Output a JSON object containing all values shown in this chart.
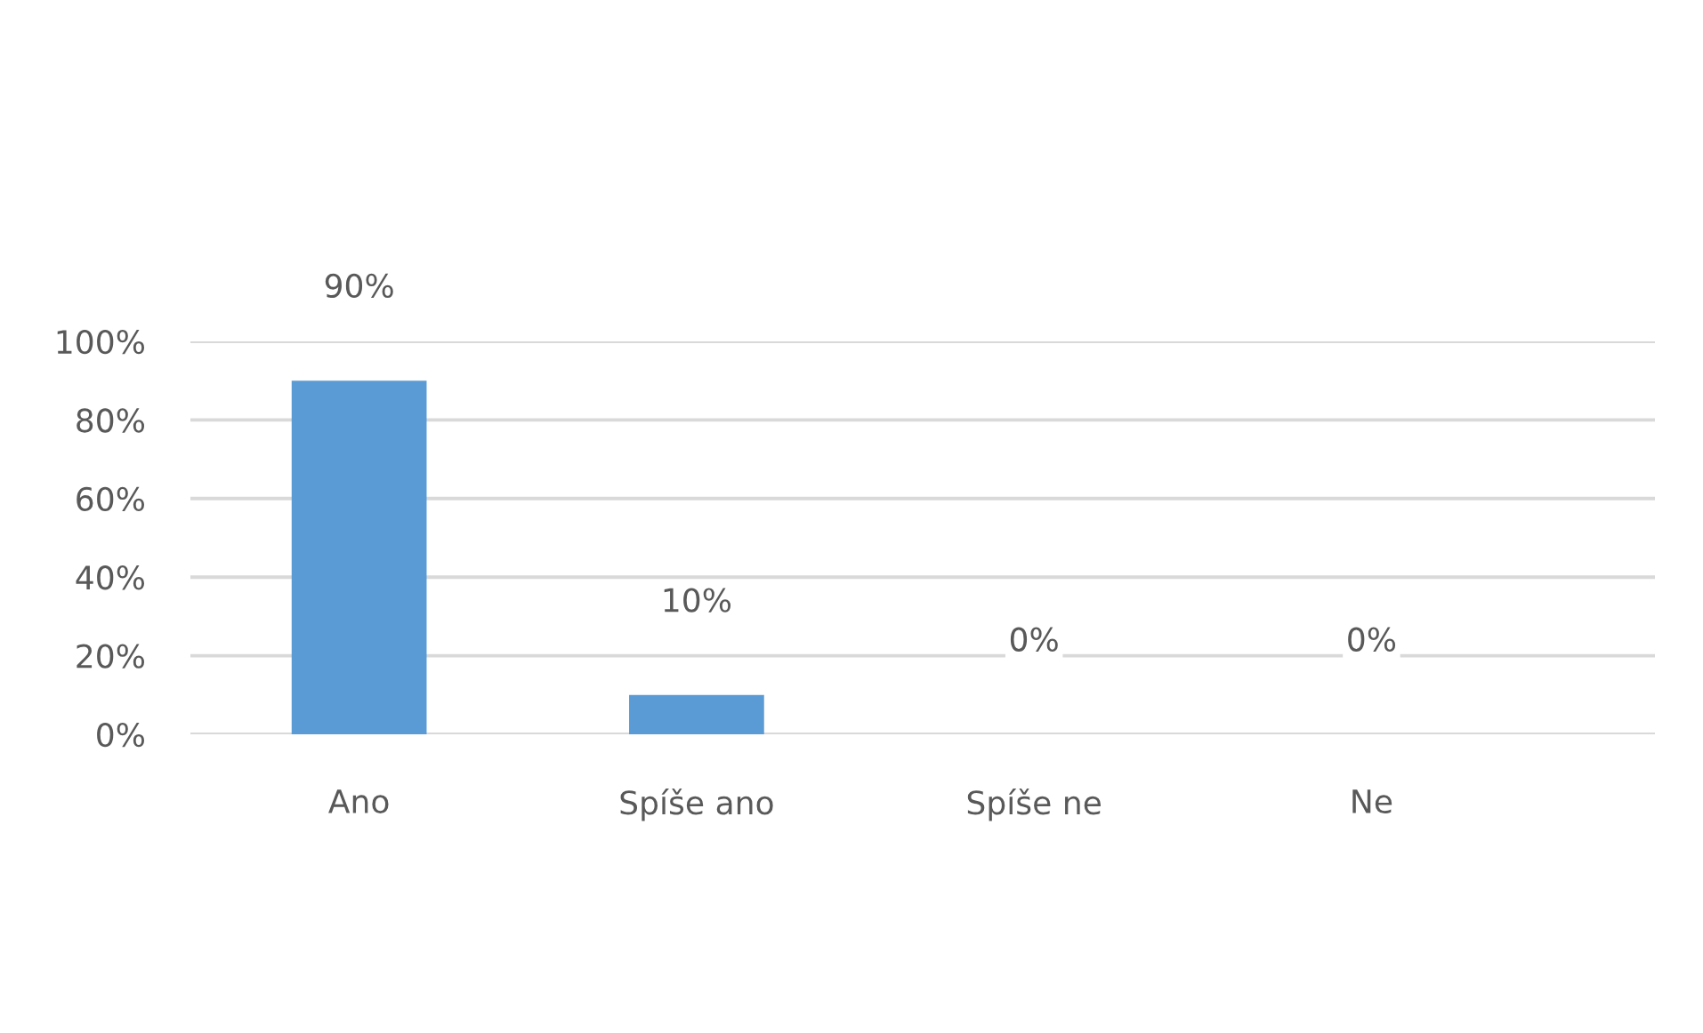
{
  "chart_data": {
    "type": "bar",
    "categories": [
      "Ano",
      "Spíše ano",
      "Spíše ne",
      "Ne"
    ],
    "values": [
      90,
      10,
      0,
      0
    ],
    "color": "#5b9bd5",
    "value_labels": [
      "90%",
      "10%",
      "0%",
      "0%"
    ],
    "ylim": [
      0,
      100
    ],
    "yticks": [
      {
        "value": 0,
        "label": "0%"
      },
      {
        "value": 20,
        "label": "20%"
      },
      {
        "value": 40,
        "label": "40%"
      },
      {
        "value": 60,
        "label": "60%"
      },
      {
        "value": 80,
        "label": "80%"
      },
      {
        "value": 100,
        "label": "100%"
      }
    ],
    "grid": "y"
  }
}
